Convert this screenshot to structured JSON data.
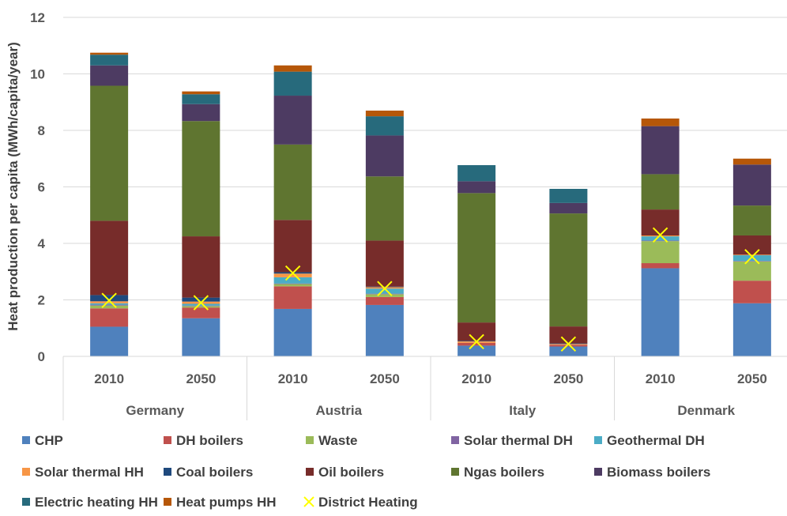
{
  "chart_data": {
    "type": "bar",
    "stacked": true,
    "ylabel": "Heat production per capita (MWh/capita/year)",
    "xlabel": "",
    "ylim": [
      0,
      12
    ],
    "yticks": [
      0,
      2,
      4,
      6,
      8,
      10,
      12
    ],
    "grid": true,
    "legend_position": "bottom",
    "groups": [
      "Germany",
      "Austria",
      "Italy",
      "Denmark"
    ],
    "categories": [
      "2010",
      "2050",
      "2010",
      "2050",
      "2010",
      "2050",
      "2010",
      "2050"
    ],
    "series": [
      {
        "name": "CHP",
        "color": "#4f81bd",
        "values": [
          1.05,
          1.35,
          1.68,
          1.82,
          0.38,
          0.35,
          3.12,
          1.88
        ]
      },
      {
        "name": "DH boilers",
        "color": "#c0504d",
        "values": [
          0.65,
          0.38,
          0.8,
          0.28,
          0.1,
          0.06,
          0.18,
          0.8
        ]
      },
      {
        "name": "Waste",
        "color": "#9bbb59",
        "values": [
          0.1,
          0.05,
          0.08,
          0.1,
          0.0,
          0.0,
          0.78,
          0.68
        ]
      },
      {
        "name": "Solar thermal DH",
        "color": "#8064a2",
        "values": [
          0.03,
          0.02,
          0.02,
          0.02,
          0.0,
          0.0,
          0.02,
          0.02
        ]
      },
      {
        "name": "Geothermal DH",
        "color": "#4bacc6",
        "values": [
          0.05,
          0.06,
          0.22,
          0.18,
          0.0,
          0.0,
          0.15,
          0.2
        ]
      },
      {
        "name": "Solar thermal HH",
        "color": "#f79646",
        "values": [
          0.07,
          0.08,
          0.13,
          0.05,
          0.05,
          0.03,
          0.03,
          0.02
        ]
      },
      {
        "name": "Coal boilers",
        "color": "#1f497d",
        "values": [
          0.22,
          0.14,
          0.05,
          0.02,
          0.02,
          0.02,
          0.0,
          0.0
        ]
      },
      {
        "name": "Oil boilers",
        "color": "#772c2a",
        "values": [
          2.63,
          2.17,
          1.85,
          1.63,
          0.65,
          0.6,
          0.92,
          0.68
        ]
      },
      {
        "name": "Ngas boilers",
        "color": "#5f7530",
        "values": [
          4.78,
          4.08,
          2.67,
          2.27,
          4.58,
          4.0,
          1.25,
          1.06
        ]
      },
      {
        "name": "Biomass boilers",
        "color": "#4d3b62",
        "values": [
          0.72,
          0.6,
          1.73,
          1.45,
          0.42,
          0.37,
          1.7,
          1.45
        ]
      },
      {
        "name": "Electric heating HH",
        "color": "#276a7c",
        "values": [
          0.38,
          0.35,
          0.85,
          0.68,
          0.57,
          0.5,
          0.0,
          0.0
        ]
      },
      {
        "name": "Heat pumps HH",
        "color": "#b65708",
        "values": [
          0.07,
          0.1,
          0.22,
          0.2,
          0.0,
          0.0,
          0.27,
          0.21
        ]
      }
    ],
    "overlay": {
      "name": "District Heating",
      "marker": "x",
      "color": "#ffff00",
      "values": [
        1.98,
        1.9,
        2.95,
        2.4,
        0.52,
        0.44,
        4.3,
        3.53
      ]
    }
  }
}
